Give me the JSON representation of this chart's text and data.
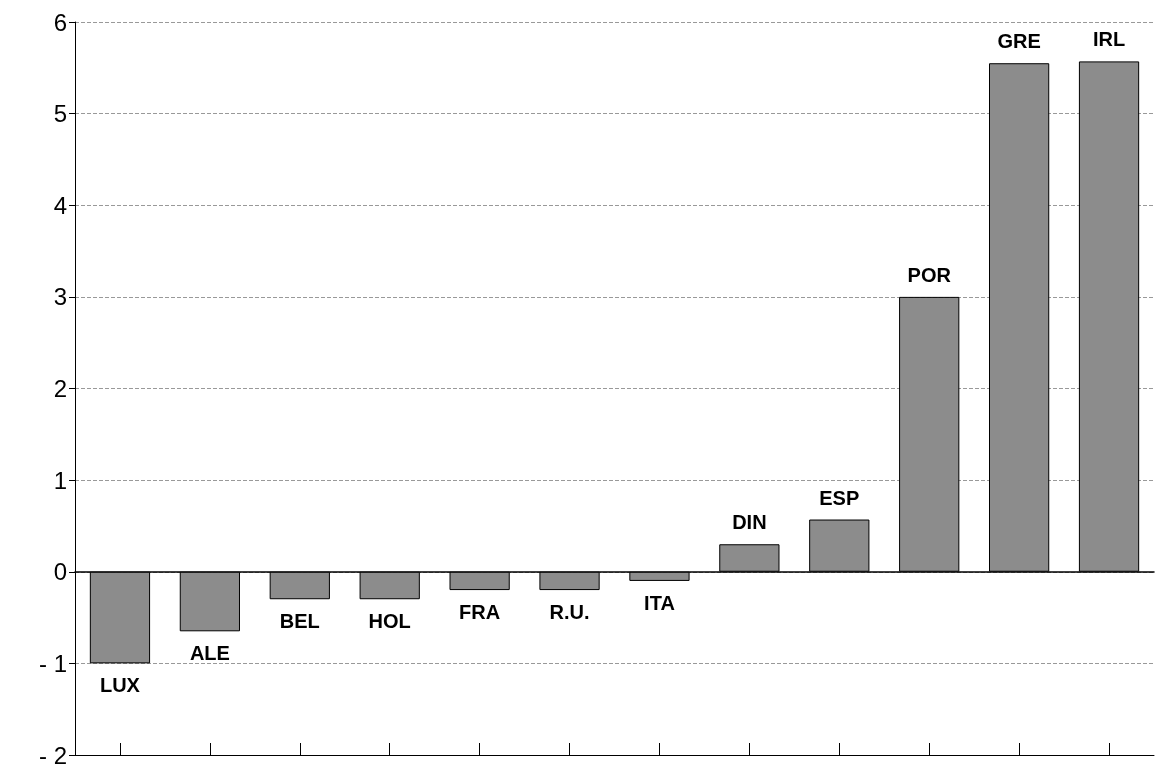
{
  "chart_data": {
    "type": "bar",
    "categories": [
      "LUX",
      "ALE",
      "BEL",
      "HOL",
      "FRA",
      "R.U.",
      "ITA",
      "DIN",
      "ESP",
      "POR",
      "GRE",
      "IRL"
    ],
    "values": [
      -1.0,
      -0.65,
      -0.3,
      -0.3,
      -0.2,
      -0.2,
      -0.1,
      0.3,
      0.57,
      3.0,
      5.55,
      5.57
    ],
    "color": "#8c8c8c",
    "ylim": [
      -2,
      6
    ],
    "yticks": [
      -2,
      -1,
      0,
      1,
      2,
      3,
      4,
      5,
      6
    ],
    "grid": "y",
    "tick_labels": "y"
  }
}
